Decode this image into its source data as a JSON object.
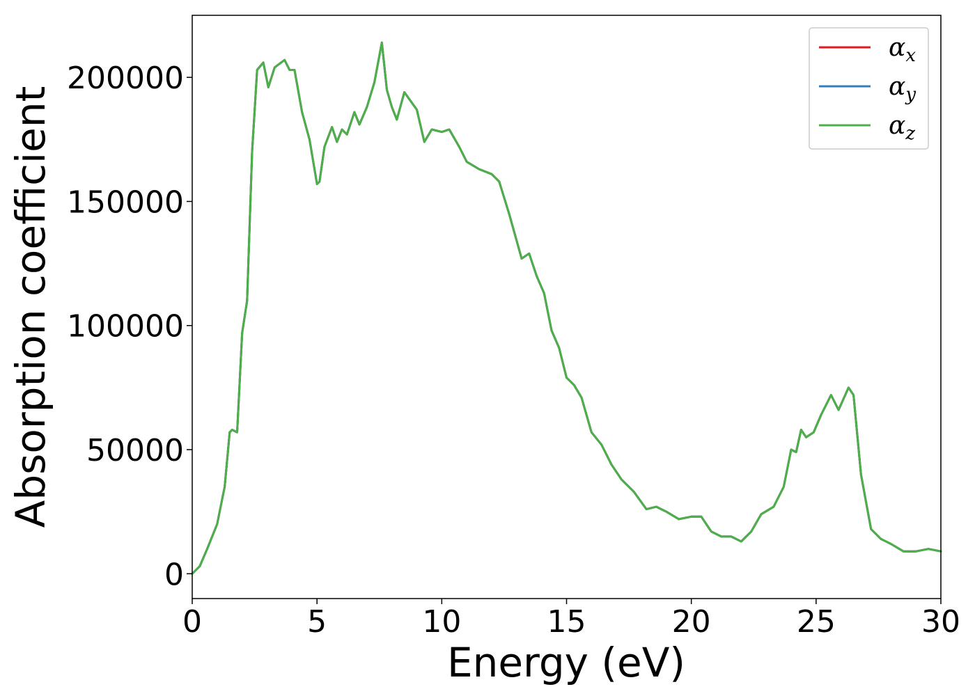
{
  "chart_data": {
    "type": "line",
    "title": "",
    "xlabel": "Energy (eV)",
    "ylabel": "Absorption coefficient",
    "xlim": [
      0,
      30
    ],
    "ylim": [
      -10000,
      225000
    ],
    "xticks": [
      0,
      5,
      10,
      15,
      20,
      25,
      30
    ],
    "xtick_labels": [
      "0",
      "5",
      "10",
      "15",
      "20",
      "25",
      "30"
    ],
    "yticks": [
      0,
      50000,
      100000,
      150000,
      200000
    ],
    "ytick_labels": [
      "0",
      "50000",
      "100000",
      "150000",
      "200000"
    ],
    "grid": false,
    "legend_position": "top-right",
    "series": [
      {
        "name": "αx",
        "legend_symbol": "α",
        "legend_subscript": "x",
        "color": "#e41a1c",
        "x": [
          0,
          0.3,
          0.6,
          1.0,
          1.3,
          1.5,
          1.6,
          1.8,
          2.0,
          2.2,
          2.4,
          2.6,
          2.85,
          3.05,
          3.3,
          3.7,
          3.9,
          4.1,
          4.4,
          4.7,
          5.0,
          5.1,
          5.3,
          5.6,
          5.8,
          6.0,
          6.2,
          6.5,
          6.7,
          7.0,
          7.3,
          7.6,
          7.8,
          8.0,
          8.2,
          8.5,
          9.0,
          9.3,
          9.6,
          10.0,
          10.3,
          10.7,
          11.0,
          11.5,
          12.0,
          12.3,
          12.7,
          13.2,
          13.5,
          13.8,
          14.1,
          14.4,
          14.7,
          15.0,
          15.3,
          15.6,
          16.0,
          16.4,
          16.8,
          17.2,
          17.7,
          18.2,
          18.6,
          19.0,
          19.5,
          20.0,
          20.4,
          20.8,
          21.2,
          21.6,
          22.0,
          22.4,
          22.8,
          23.3,
          23.7,
          24.0,
          24.2,
          24.4,
          24.6,
          24.9,
          25.2,
          25.6,
          25.9,
          26.3,
          26.5,
          26.8,
          27.2,
          27.6,
          28.0,
          28.5,
          29.0,
          29.5,
          30.0
        ],
        "y": [
          0,
          3000,
          10000,
          20000,
          35000,
          57000,
          58000,
          57000,
          97000,
          110000,
          170000,
          203000,
          206000,
          196000,
          204000,
          207000,
          203000,
          203000,
          186000,
          175000,
          157000,
          158000,
          172000,
          180000,
          174000,
          179000,
          177000,
          186000,
          181000,
          188000,
          198000,
          214000,
          195000,
          188000,
          183000,
          194000,
          187000,
          174000,
          179000,
          178000,
          179000,
          172000,
          166000,
          163000,
          161000,
          158000,
          145000,
          127000,
          129000,
          120000,
          113000,
          98000,
          91000,
          79000,
          76000,
          71000,
          57000,
          52000,
          44000,
          38000,
          33000,
          26000,
          27000,
          25000,
          22000,
          23000,
          23000,
          17000,
          15000,
          15000,
          13000,
          17000,
          24000,
          27000,
          35000,
          50000,
          49000,
          58000,
          55000,
          57000,
          64000,
          72000,
          66000,
          75000,
          72000,
          40000,
          18000,
          14000,
          12000,
          9000,
          9000,
          10000,
          9000
        ]
      },
      {
        "name": "αy",
        "legend_symbol": "α",
        "legend_subscript": "y",
        "color": "#377eb8",
        "x": [
          0,
          0.3,
          0.6,
          1.0,
          1.3,
          1.5,
          1.6,
          1.8,
          2.0,
          2.2,
          2.4,
          2.6,
          2.85,
          3.05,
          3.3,
          3.7,
          3.9,
          4.1,
          4.4,
          4.7,
          5.0,
          5.1,
          5.3,
          5.6,
          5.8,
          6.0,
          6.2,
          6.5,
          6.7,
          7.0,
          7.3,
          7.6,
          7.8,
          8.0,
          8.2,
          8.5,
          9.0,
          9.3,
          9.6,
          10.0,
          10.3,
          10.7,
          11.0,
          11.5,
          12.0,
          12.3,
          12.7,
          13.2,
          13.5,
          13.8,
          14.1,
          14.4,
          14.7,
          15.0,
          15.3,
          15.6,
          16.0,
          16.4,
          16.8,
          17.2,
          17.7,
          18.2,
          18.6,
          19.0,
          19.5,
          20.0,
          20.4,
          20.8,
          21.2,
          21.6,
          22.0,
          22.4,
          22.8,
          23.3,
          23.7,
          24.0,
          24.2,
          24.4,
          24.6,
          24.9,
          25.2,
          25.6,
          25.9,
          26.3,
          26.5,
          26.8,
          27.2,
          27.6,
          28.0,
          28.5,
          29.0,
          29.5,
          30.0
        ],
        "y": [
          0,
          3000,
          10000,
          20000,
          35000,
          57000,
          58000,
          57000,
          97000,
          110000,
          170000,
          203000,
          206000,
          196000,
          204000,
          207000,
          203000,
          203000,
          186000,
          175000,
          157000,
          158000,
          172000,
          180000,
          174000,
          179000,
          177000,
          186000,
          181000,
          188000,
          198000,
          214000,
          195000,
          188000,
          183000,
          194000,
          187000,
          174000,
          179000,
          178000,
          179000,
          172000,
          166000,
          163000,
          161000,
          158000,
          145000,
          127000,
          129000,
          120000,
          113000,
          98000,
          91000,
          79000,
          76000,
          71000,
          57000,
          52000,
          44000,
          38000,
          33000,
          26000,
          27000,
          25000,
          22000,
          23000,
          23000,
          17000,
          15000,
          15000,
          13000,
          17000,
          24000,
          27000,
          35000,
          50000,
          49000,
          58000,
          55000,
          57000,
          64000,
          72000,
          66000,
          75000,
          72000,
          40000,
          18000,
          14000,
          12000,
          9000,
          9000,
          10000,
          9000
        ]
      },
      {
        "name": "αz",
        "legend_symbol": "α",
        "legend_subscript": "z",
        "color": "#4daf4a",
        "x": [
          0,
          0.3,
          0.6,
          1.0,
          1.3,
          1.5,
          1.6,
          1.8,
          2.0,
          2.2,
          2.4,
          2.6,
          2.85,
          3.05,
          3.3,
          3.7,
          3.9,
          4.1,
          4.4,
          4.7,
          5.0,
          5.1,
          5.3,
          5.6,
          5.8,
          6.0,
          6.2,
          6.5,
          6.7,
          7.0,
          7.3,
          7.6,
          7.8,
          8.0,
          8.2,
          8.5,
          9.0,
          9.3,
          9.6,
          10.0,
          10.3,
          10.7,
          11.0,
          11.5,
          12.0,
          12.3,
          12.7,
          13.2,
          13.5,
          13.8,
          14.1,
          14.4,
          14.7,
          15.0,
          15.3,
          15.6,
          16.0,
          16.4,
          16.8,
          17.2,
          17.7,
          18.2,
          18.6,
          19.0,
          19.5,
          20.0,
          20.4,
          20.8,
          21.2,
          21.6,
          22.0,
          22.4,
          22.8,
          23.3,
          23.7,
          24.0,
          24.2,
          24.4,
          24.6,
          24.9,
          25.2,
          25.6,
          25.9,
          26.3,
          26.5,
          26.8,
          27.2,
          27.6,
          28.0,
          28.5,
          29.0,
          29.5,
          30.0
        ],
        "y": [
          0,
          3000,
          10000,
          20000,
          35000,
          57000,
          58000,
          57000,
          97000,
          110000,
          170000,
          203000,
          206000,
          196000,
          204000,
          207000,
          203000,
          203000,
          186000,
          175000,
          157000,
          158000,
          172000,
          180000,
          174000,
          179000,
          177000,
          186000,
          181000,
          188000,
          198000,
          214000,
          195000,
          188000,
          183000,
          194000,
          187000,
          174000,
          179000,
          178000,
          179000,
          172000,
          166000,
          163000,
          161000,
          158000,
          145000,
          127000,
          129000,
          120000,
          113000,
          98000,
          91000,
          79000,
          76000,
          71000,
          57000,
          52000,
          44000,
          38000,
          33000,
          26000,
          27000,
          25000,
          22000,
          23000,
          23000,
          17000,
          15000,
          15000,
          13000,
          17000,
          24000,
          27000,
          35000,
          50000,
          49000,
          58000,
          55000,
          57000,
          64000,
          72000,
          66000,
          75000,
          72000,
          40000,
          18000,
          14000,
          12000,
          9000,
          9000,
          10000,
          9000
        ]
      }
    ]
  }
}
